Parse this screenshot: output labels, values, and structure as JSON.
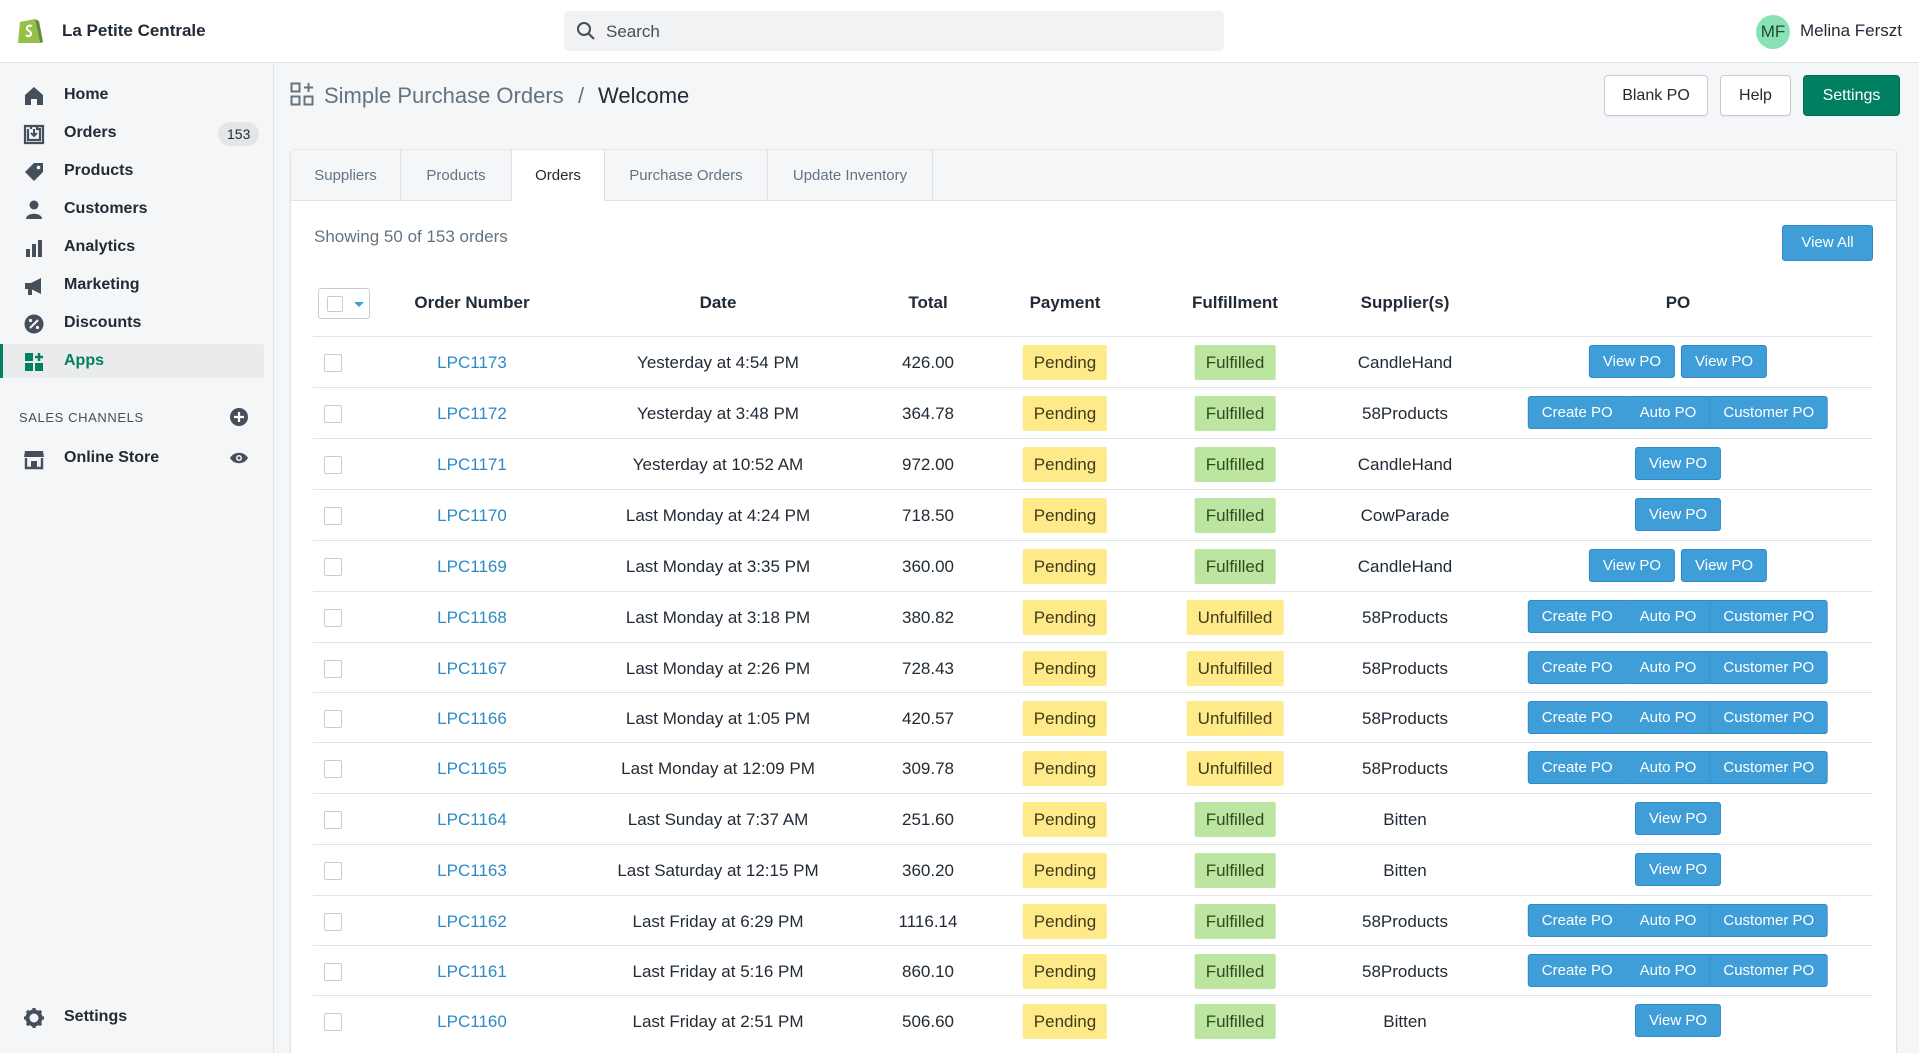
{
  "topbar": {
    "shop_name": "La Petite Centrale",
    "search_placeholder": "Search",
    "user_initials": "MF",
    "user_name": "Melina Ferszt"
  },
  "sidebar": {
    "items": [
      {
        "label": "Home",
        "icon": "home-icon"
      },
      {
        "label": "Orders",
        "icon": "orders-icon",
        "badge": "153"
      },
      {
        "label": "Products",
        "icon": "tag-icon"
      },
      {
        "label": "Customers",
        "icon": "person-icon"
      },
      {
        "label": "Analytics",
        "icon": "bar-chart-icon"
      },
      {
        "label": "Marketing",
        "icon": "megaphone-icon"
      },
      {
        "label": "Discounts",
        "icon": "discount-icon"
      },
      {
        "label": "Apps",
        "icon": "apps-icon",
        "active": true
      }
    ],
    "sales_channels_heading": "SALES CHANNELS",
    "online_store_label": "Online Store",
    "settings_label": "Settings"
  },
  "header": {
    "app_name": "Simple Purchase Orders",
    "separator": "/",
    "page_title": "Welcome",
    "buttons": {
      "blank_po": "Blank PO",
      "help": "Help",
      "settings": "Settings"
    }
  },
  "tabs": [
    "Suppliers",
    "Products",
    "Orders",
    "Purchase Orders",
    "Update Inventory"
  ],
  "active_tab": "Orders",
  "showing_text": "Showing 50 of 153 orders",
  "view_all_label": "View All",
  "table": {
    "headers": {
      "order_number": "Order Number",
      "date": "Date",
      "total": "Total",
      "payment": "Payment",
      "fulfillment": "Fulfillment",
      "suppliers": "Supplier(s)",
      "po": "PO"
    },
    "rows": [
      {
        "order": "LPC1173",
        "date": "Yesterday at 4:54 PM",
        "total": "426.00",
        "payment": "Pending",
        "fulfillment": "Fulfilled",
        "supplier": "CandleHand",
        "po": [
          "View PO",
          "View PO"
        ]
      },
      {
        "order": "LPC1172",
        "date": "Yesterday at 3:48 PM",
        "total": "364.78",
        "payment": "Pending",
        "fulfillment": "Fulfilled",
        "supplier": "58Products",
        "po": [
          "Create PO",
          "Auto PO",
          "Customer PO"
        ]
      },
      {
        "order": "LPC1171",
        "date": "Yesterday at 10:52 AM",
        "total": "972.00",
        "payment": "Pending",
        "fulfillment": "Fulfilled",
        "supplier": "CandleHand",
        "po": [
          "View PO"
        ]
      },
      {
        "order": "LPC1170",
        "date": "Last Monday at 4:24 PM",
        "total": "718.50",
        "payment": "Pending",
        "fulfillment": "Fulfilled",
        "supplier": "CowParade",
        "po": [
          "View PO"
        ]
      },
      {
        "order": "LPC1169",
        "date": "Last Monday at 3:35 PM",
        "total": "360.00",
        "payment": "Pending",
        "fulfillment": "Fulfilled",
        "supplier": "CandleHand",
        "po": [
          "View PO",
          "View PO"
        ]
      },
      {
        "order": "LPC1168",
        "date": "Last Monday at 3:18 PM",
        "total": "380.82",
        "payment": "Pending",
        "fulfillment": "Unfulfilled",
        "supplier": "58Products",
        "po": [
          "Create PO",
          "Auto PO",
          "Customer PO"
        ]
      },
      {
        "order": "LPC1167",
        "date": "Last Monday at 2:26 PM",
        "total": "728.43",
        "payment": "Pending",
        "fulfillment": "Unfulfilled",
        "supplier": "58Products",
        "po": [
          "Create PO",
          "Auto PO",
          "Customer PO"
        ]
      },
      {
        "order": "LPC1166",
        "date": "Last Monday at 1:05 PM",
        "total": "420.57",
        "payment": "Pending",
        "fulfillment": "Unfulfilled",
        "supplier": "58Products",
        "po": [
          "Create PO",
          "Auto PO",
          "Customer PO"
        ]
      },
      {
        "order": "LPC1165",
        "date": "Last Monday at 12:09 PM",
        "total": "309.78",
        "payment": "Pending",
        "fulfillment": "Unfulfilled",
        "supplier": "58Products",
        "po": [
          "Create PO",
          "Auto PO",
          "Customer PO"
        ]
      },
      {
        "order": "LPC1164",
        "date": "Last Sunday at 7:37 AM",
        "total": "251.60",
        "payment": "Pending",
        "fulfillment": "Fulfilled",
        "supplier": "Bitten",
        "po": [
          "View PO"
        ]
      },
      {
        "order": "LPC1163",
        "date": "Last Saturday at 12:15 PM",
        "total": "360.20",
        "payment": "Pending",
        "fulfillment": "Fulfilled",
        "supplier": "Bitten",
        "po": [
          "View PO"
        ]
      },
      {
        "order": "LPC1162",
        "date": "Last Friday at 6:29 PM",
        "total": "1116.14",
        "payment": "Pending",
        "fulfillment": "Fulfilled",
        "supplier": "58Products",
        "po": [
          "Create PO",
          "Auto PO",
          "Customer PO"
        ]
      },
      {
        "order": "LPC1161",
        "date": "Last Friday at 5:16 PM",
        "total": "860.10",
        "payment": "Pending",
        "fulfillment": "Fulfilled",
        "supplier": "58Products",
        "po": [
          "Create PO",
          "Auto PO",
          "Customer PO"
        ]
      },
      {
        "order": "LPC1160",
        "date": "Last Friday at 2:51 PM",
        "total": "506.60",
        "payment": "Pending",
        "fulfillment": "Fulfilled",
        "supplier": "Bitten",
        "po": [
          "View PO"
        ]
      }
    ]
  },
  "colors": {
    "accent_green": "#008060",
    "link_blue": "#2c8ac4",
    "button_blue": "#3f9ed8",
    "pending_yellow": "#ffea8a",
    "fulfilled_green": "#bbe5a0"
  }
}
